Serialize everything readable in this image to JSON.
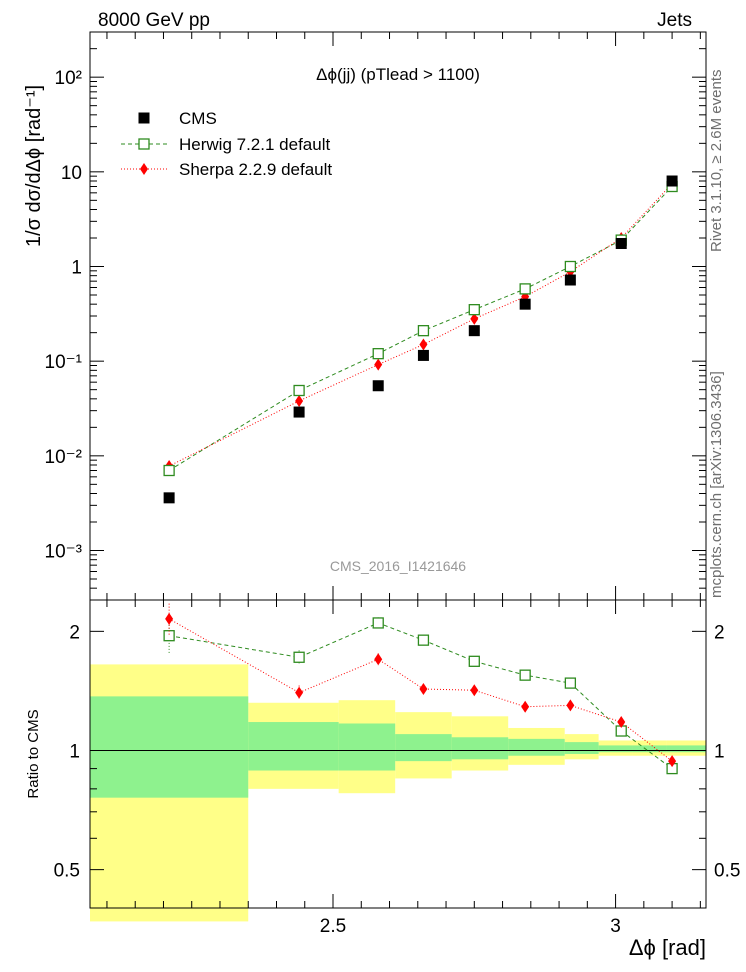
{
  "header": {
    "energy_label": "8000 GeV pp",
    "process_label": "Jets"
  },
  "side_labels": {
    "rivet": "Rivet 3.1.10, ≥ 2.6M events",
    "mcplots": "mcplots.cern.ch [arXiv:1306.3436]"
  },
  "chart_data": [
    {
      "type": "scatter",
      "panel": "main",
      "title": "Δϕ(jj) (pTlead >  1100)",
      "watermark": "CMS_2016_I1421646",
      "ylabel": "1/σ dσ/dΔϕ [rad⁻¹]",
      "yscale": "log",
      "ylim": [
        0.0003,
        300
      ],
      "xlim": [
        2.07,
        3.16
      ],
      "ytick_labels": [
        "10⁻³",
        "10⁻²",
        "10⁻¹",
        "1",
        "10",
        "10²"
      ],
      "legend_position": "top-left",
      "x": [
        2.21,
        2.44,
        2.58,
        2.66,
        2.75,
        2.84,
        2.92,
        3.01,
        3.1
      ],
      "series": [
        {
          "name": "CMS",
          "marker": "filled-square",
          "color": "#000000",
          "values": [
            0.0036,
            0.029,
            0.055,
            0.115,
            0.21,
            0.4,
            0.72,
            1.75,
            8.0
          ]
        },
        {
          "name": "Herwig 7.2.1 default",
          "marker": "open-square",
          "line": "dashed",
          "color": "#2e8b1f",
          "values": [
            0.007,
            0.049,
            0.12,
            0.21,
            0.35,
            0.58,
            1.0,
            1.9,
            7.0
          ]
        },
        {
          "name": "Sherpa 2.2.9 default",
          "marker": "diamond",
          "line": "dotted",
          "color": "#ff0000",
          "values": [
            0.0078,
            0.038,
            0.092,
            0.15,
            0.28,
            0.48,
            0.88,
            2.0,
            7.5
          ]
        }
      ]
    },
    {
      "type": "scatter",
      "panel": "ratio",
      "ylabel": "Ratio to CMS",
      "xlabel": "Δϕ [rad]",
      "yscale": "log",
      "ylim": [
        0.4,
        2.4
      ],
      "xlim": [
        2.07,
        3.16
      ],
      "ytick_labels": [
        "0.5",
        "1",
        "2"
      ],
      "xtick_labels": [
        "2.5",
        "3"
      ],
      "x": [
        2.21,
        2.44,
        2.58,
        2.66,
        2.75,
        2.84,
        2.92,
        3.01,
        3.1
      ],
      "band_edges": [
        2.07,
        2.35,
        2.51,
        2.61,
        2.71,
        2.81,
        2.91,
        2.97,
        3.03,
        3.09,
        3.16
      ],
      "band_inner": [
        [
          0.76,
          1.37
        ],
        [
          0.89,
          1.18
        ],
        [
          0.89,
          1.17
        ],
        [
          0.94,
          1.1
        ],
        [
          0.95,
          1.08
        ],
        [
          0.97,
          1.07
        ],
        [
          0.98,
          1.05
        ],
        [
          0.99,
          1.03
        ],
        [
          0.99,
          1.03
        ],
        [
          0.99,
          1.03
        ]
      ],
      "band_outer": [
        [
          0.37,
          1.65
        ],
        [
          0.8,
          1.32
        ],
        [
          0.78,
          1.34
        ],
        [
          0.85,
          1.25
        ],
        [
          0.89,
          1.22
        ],
        [
          0.92,
          1.14
        ],
        [
          0.95,
          1.1
        ],
        [
          0.97,
          1.06
        ],
        [
          0.97,
          1.06
        ],
        [
          0.97,
          1.06
        ]
      ],
      "series": [
        {
          "name": "Herwig 7.2.1 default",
          "marker": "open-square",
          "line": "dashed",
          "color": "#2e8b1f",
          "values": [
            1.95,
            1.72,
            2.1,
            1.9,
            1.68,
            1.55,
            1.48,
            1.12,
            0.9
          ],
          "errors": [
            0.2,
            0.07,
            0.07,
            0.04,
            0.03,
            0.02,
            0.02,
            0.02,
            0.02
          ]
        },
        {
          "name": "Sherpa 2.2.9 default",
          "marker": "diamond",
          "line": "dotted",
          "color": "#ff0000",
          "values": [
            2.15,
            1.4,
            1.7,
            1.43,
            1.42,
            1.29,
            1.3,
            1.18,
            0.94
          ],
          "errors": [
            0.2,
            0.06,
            0.06,
            0.04,
            0.03,
            0.03,
            0.02,
            0.02,
            0.02
          ]
        }
      ]
    }
  ]
}
